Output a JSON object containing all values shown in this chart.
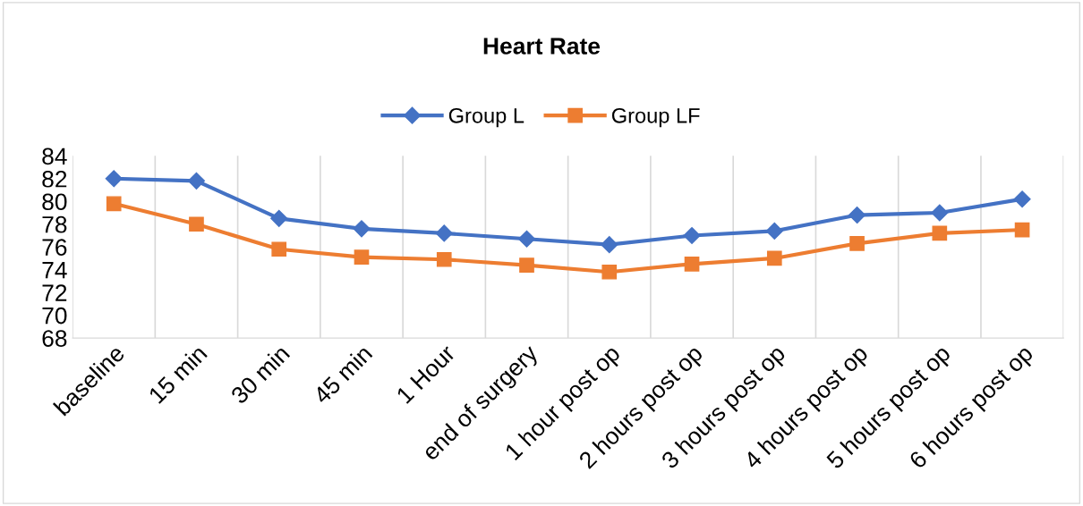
{
  "chart_data": {
    "type": "line",
    "title": "Heart Rate",
    "categories": [
      "baseline",
      "15 min",
      "30 min",
      "45 min",
      "1 Hour",
      "end of surgery",
      "1 hour post op",
      "2 hours post op",
      "3 hours post op",
      "4 hours post op",
      "5 hours post op",
      "6 hours post op"
    ],
    "series": [
      {
        "name": "Group L",
        "color": "#4472c4",
        "marker": "diamond",
        "values": [
          82.0,
          81.8,
          78.5,
          77.6,
          77.2,
          76.7,
          76.2,
          77.0,
          77.4,
          78.8,
          79.0,
          80.2
        ]
      },
      {
        "name": "Group LF",
        "color": "#ed7d31",
        "marker": "square",
        "values": [
          79.8,
          78.0,
          75.8,
          75.1,
          74.9,
          74.4,
          73.8,
          74.5,
          75.0,
          76.3,
          77.2,
          77.5
        ]
      }
    ],
    "ylim": [
      68,
      84
    ],
    "yticks": [
      68,
      70,
      72,
      74,
      76,
      78,
      80,
      82,
      84
    ],
    "grid": "x",
    "legend": "top",
    "line_style": "solid"
  }
}
